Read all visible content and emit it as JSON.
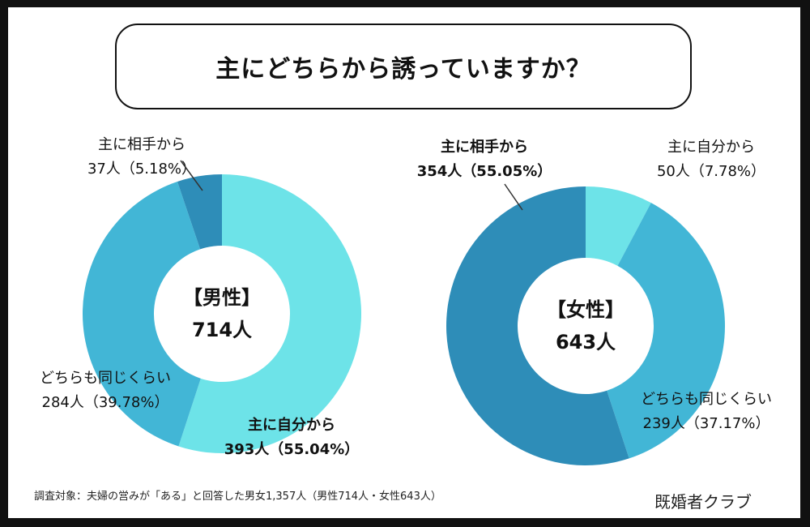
{
  "title": "主にどちらから誘っていますか？",
  "footnote": "調査対象：夫婦の営みが「ある」と回答した男女1,357人（男性714人・女性643人）",
  "brand": "既婚者クラブ",
  "colors": {
    "self": "#6de3e8",
    "same": "#42b6d6",
    "partner": "#2e8db8"
  },
  "chart_data": [
    {
      "type": "pie",
      "center_label": "【男性】",
      "center_value": "714人",
      "slices": [
        {
          "key": "self",
          "label": "主に自分から",
          "count_text": "393人（55.04%）",
          "value": 55.04,
          "bold": true
        },
        {
          "key": "same",
          "label": "どちらも同じくらい",
          "count_text": "284人（39.78%）",
          "value": 39.78,
          "bold": false
        },
        {
          "key": "partner",
          "label": "主に相手から",
          "count_text": "37人（5.18%）",
          "value": 5.18,
          "bold": false
        }
      ]
    },
    {
      "type": "pie",
      "center_label": "【女性】",
      "center_value": "643人",
      "slices": [
        {
          "key": "self",
          "label": "主に自分から",
          "count_text": "50人（7.78%）",
          "value": 7.78,
          "bold": false
        },
        {
          "key": "same",
          "label": "どちらも同じくらい",
          "count_text": "239人（37.17%）",
          "value": 37.17,
          "bold": false
        },
        {
          "key": "partner",
          "label": "主に相手から",
          "count_text": "354人（55.05%）",
          "value": 55.05,
          "bold": true
        }
      ]
    }
  ]
}
